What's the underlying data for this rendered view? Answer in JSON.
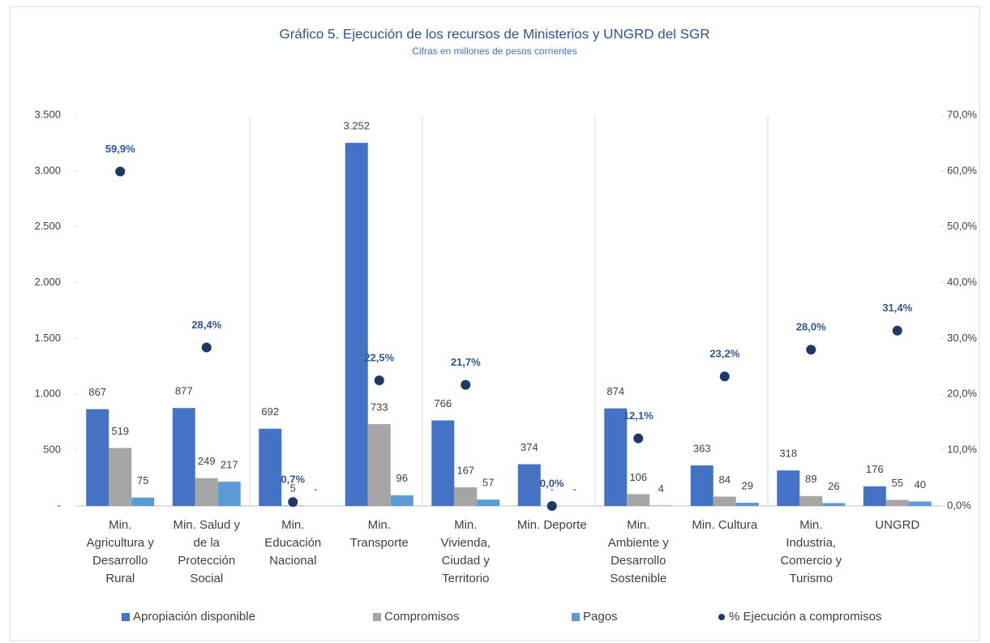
{
  "chart_data": {
    "type": "bar",
    "title": "Gráfico 5. Ejecución de los recursos de Ministerios y UNGRD del SGR",
    "subtitle": "Cifras en millones de pesos corrientes",
    "categories": [
      "Min.\nAgricultura y\nDesarrollo\nRural",
      "Min. Salud y\nde la\nProtección\nSocial",
      "Min.\nEducación\nNacional",
      "Min.\nTransporte",
      "Min.\nVivienda,\nCiudad y\nTerritorio",
      "Min. Deporte",
      "Min.\nAmbiente y\nDesarrollo\nSostenible",
      "Min. Cultura",
      "Min.\nIndustria,\nComercio y\nTurismo",
      "UNGRD"
    ],
    "series": [
      {
        "name": "Apropiación disponible",
        "color": "#4472c4",
        "values": [
          867,
          877,
          692,
          3252,
          766,
          374,
          874,
          363,
          318,
          176
        ],
        "value_labels": [
          "867",
          "877",
          "692",
          "3.252",
          "766",
          "374",
          "874",
          "363",
          "318",
          "176"
        ]
      },
      {
        "name": "Compromisos",
        "color": "#a5a5a5",
        "values": [
          519,
          249,
          5,
          733,
          167,
          0,
          106,
          84,
          89,
          55
        ],
        "value_labels": [
          "519",
          "249",
          "5",
          "733",
          "167",
          "-",
          "106",
          "84",
          "89",
          "55"
        ]
      },
      {
        "name": "Pagos",
        "color": "#5b9bd5",
        "values": [
          75,
          217,
          0,
          96,
          57,
          0,
          4,
          29,
          26,
          40
        ],
        "value_labels": [
          "75",
          "217",
          "-",
          "96",
          "57",
          "-",
          "4",
          "29",
          "26",
          "40"
        ]
      },
      {
        "name": "% Ejecución a compromisos",
        "color": "#1f3864",
        "type": "scatter",
        "axis": "y2",
        "values": [
          59.9,
          28.4,
          0.7,
          22.5,
          21.7,
          0.0,
          12.1,
          23.2,
          28.0,
          31.4
        ],
        "value_labels": [
          "59,9%",
          "28,4%",
          "0,7%",
          "22,5%",
          "21,7%",
          "0,0%",
          "12,1%",
          "23,2%",
          "28,0%",
          "31,4%"
        ]
      }
    ],
    "ylim": [
      0,
      3500
    ],
    "yticks": [
      {
        "value": 0,
        "label": "-"
      },
      500,
      {
        "value": 1000,
        "label": "1.000"
      },
      {
        "value": 1500,
        "label": "1.500"
      },
      {
        "value": 2000,
        "label": "2.000"
      },
      {
        "value": 2500,
        "label": "2.500"
      },
      {
        "value": 3000,
        "label": "3.000"
      },
      {
        "value": 3500,
        "label": "3.500"
      }
    ],
    "y2lim": [
      0,
      70
    ],
    "y2ticks": [
      {
        "value": 0,
        "label": "0,0%"
      },
      {
        "value": 10,
        "label": "10,0%"
      },
      {
        "value": 20,
        "label": "20,0%"
      },
      {
        "value": 30,
        "label": "30,0%"
      },
      {
        "value": 40,
        "label": "40,0%"
      },
      {
        "value": 50,
        "label": "50,0%"
      },
      {
        "value": 60,
        "label": "60,0%"
      },
      {
        "value": 70,
        "label": "70,0%"
      }
    ],
    "legend": "bottom"
  }
}
